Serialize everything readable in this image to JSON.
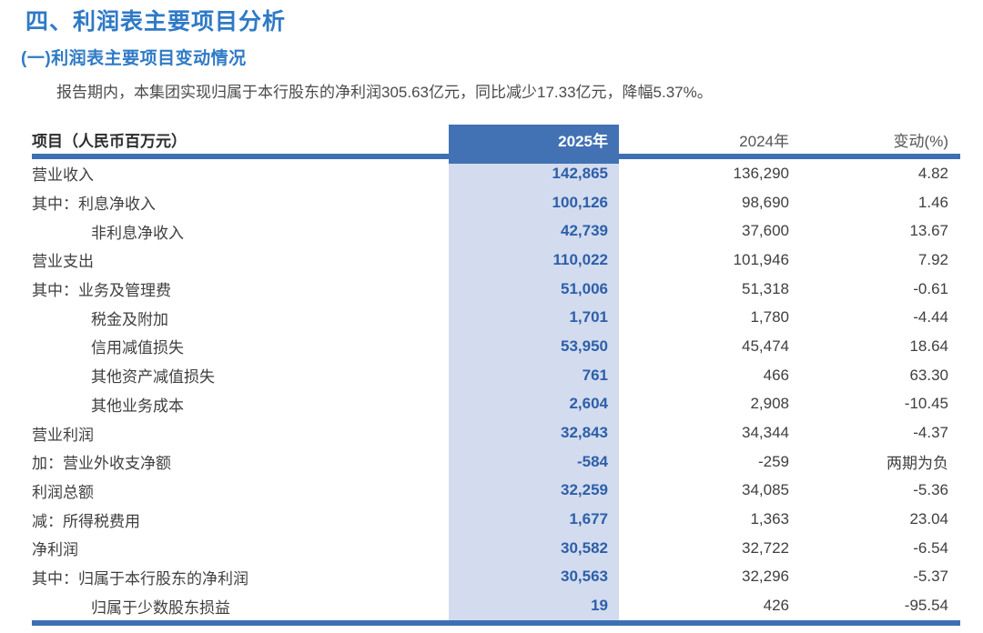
{
  "page": {
    "title": "四、利润表主要项目分析",
    "subtitle": "(一)利润表主要项目变动情况",
    "intro": "报告期内，本集团实现归属于本行股东的净利润305.63亿元，同比减少17.33亿元，降幅5.37%。"
  },
  "table": {
    "columns": [
      "项目（人民币百万元）",
      "2025年",
      "2024年",
      "变动(%)"
    ],
    "rows": [
      {
        "label": "营业收入",
        "indent": 0,
        "y2025": "142,865",
        "y2024": "136,290",
        "change": "4.82"
      },
      {
        "label": "其中：利息净收入",
        "indent": 0,
        "y2025": "100,126",
        "y2024": "98,690",
        "change": "1.46"
      },
      {
        "label": "非利息净收入",
        "indent": 1,
        "y2025": "42,739",
        "y2024": "37,600",
        "change": "13.67"
      },
      {
        "label": "营业支出",
        "indent": 0,
        "y2025": "110,022",
        "y2024": "101,946",
        "change": "7.92"
      },
      {
        "label": "其中：业务及管理费",
        "indent": 0,
        "y2025": "51,006",
        "y2024": "51,318",
        "change": "-0.61"
      },
      {
        "label": "税金及附加",
        "indent": 1,
        "y2025": "1,701",
        "y2024": "1,780",
        "change": "-4.44"
      },
      {
        "label": "信用减值损失",
        "indent": 1,
        "y2025": "53,950",
        "y2024": "45,474",
        "change": "18.64"
      },
      {
        "label": "其他资产减值损失",
        "indent": 1,
        "y2025": "761",
        "y2024": "466",
        "change": "63.30"
      },
      {
        "label": "其他业务成本",
        "indent": 1,
        "y2025": "2,604",
        "y2024": "2,908",
        "change": "-10.45"
      },
      {
        "label": "营业利润",
        "indent": 0,
        "y2025": "32,843",
        "y2024": "34,344",
        "change": "-4.37"
      },
      {
        "label": "加：营业外收支净额",
        "indent": 0,
        "y2025": "-584",
        "y2024": "-259",
        "change": "两期为负"
      },
      {
        "label": "利润总额",
        "indent": 0,
        "y2025": "32,259",
        "y2024": "34,085",
        "change": "-5.36"
      },
      {
        "label": "减：所得税费用",
        "indent": 0,
        "y2025": "1,677",
        "y2024": "1,363",
        "change": "23.04"
      },
      {
        "label": "净利润",
        "indent": 0,
        "y2025": "30,582",
        "y2024": "32,722",
        "change": "-6.54"
      },
      {
        "label": "其中：归属于本行股东的净利润",
        "indent": 0,
        "y2025": "30,563",
        "y2024": "32,296",
        "change": "-5.37"
      },
      {
        "label": "归属于少数股东损益",
        "indent": 1,
        "y2025": "19",
        "y2024": "426",
        "change": "-95.54"
      }
    ]
  },
  "colors": {
    "heading_blue": "#2F7AC6",
    "header_fill_blue": "#4272B4",
    "divider_blue": "#3F6FB3",
    "highlight_column_blue": "#D3DBEE",
    "value_blue": "#2C5FA9",
    "body_text": "#3F3F3F"
  }
}
